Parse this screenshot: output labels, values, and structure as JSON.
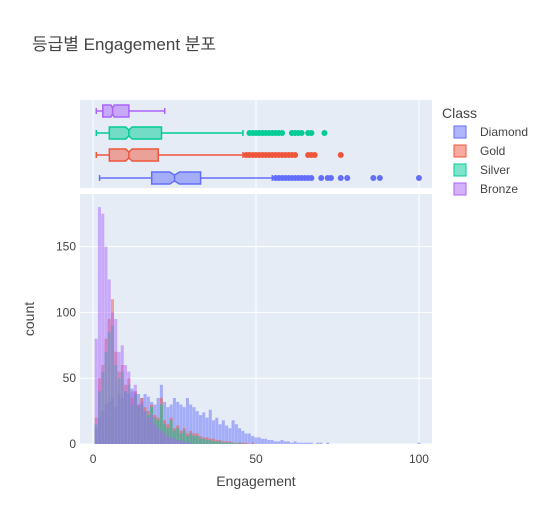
{
  "chart_data": {
    "type": "histogram_with_box_marginal",
    "title": "등급별 Engagement 분포",
    "xlabel": "Engagement",
    "ylabel": "count",
    "xlim": [
      -4,
      104
    ],
    "ylim": [
      0,
      190
    ],
    "x_ticks": [
      0,
      50,
      100
    ],
    "y_ticks": [
      0,
      50,
      100,
      150
    ],
    "legend": {
      "title": "Class",
      "position": "right"
    },
    "bin_width": 1,
    "colors": {
      "Diamond": "#636efa",
      "Gold": "#ef553b",
      "Silver": "#00cc96",
      "Bronze": "#ab63fa",
      "plot_bg": "#e5ecf6"
    },
    "series": [
      {
        "name": "Diamond",
        "bins_start": 1,
        "counts": [
          12,
          20,
          25,
          30,
          32,
          35,
          28,
          38,
          35,
          40,
          38,
          42,
          40,
          38,
          35,
          38,
          36,
          32,
          30,
          35,
          45,
          32,
          28,
          30,
          35,
          32,
          30,
          28,
          35,
          30,
          28,
          25,
          22,
          24,
          20,
          26,
          18,
          20,
          15,
          18,
          14,
          12,
          18,
          15,
          12,
          10,
          8,
          8,
          6,
          5,
          5,
          4,
          4,
          3,
          3,
          2,
          2,
          3,
          2,
          2,
          1,
          2,
          1,
          1,
          1,
          1,
          1,
          0,
          1,
          1,
          0,
          1,
          0,
          0,
          0,
          0,
          0,
          0,
          0,
          0,
          0,
          0,
          0,
          0,
          0,
          0,
          0,
          0,
          0,
          0,
          0,
          0,
          0,
          0,
          0,
          0,
          0,
          0,
          0,
          1
        ],
        "box": {
          "q1": 18,
          "median": 25,
          "q3": 33,
          "lower_fence": 2,
          "upper_fence": 55,
          "notch_low": 23.5,
          "notch_high": 26.5,
          "outliers": [
            56,
            57,
            58,
            59,
            60,
            61,
            62,
            63,
            64,
            65,
            66,
            67,
            70,
            72,
            73,
            76,
            78,
            86,
            88,
            100
          ]
        }
      },
      {
        "name": "Gold",
        "bins_start": 1,
        "counts": [
          20,
          50,
          60,
          80,
          95,
          110,
          70,
          55,
          60,
          45,
          50,
          35,
          40,
          30,
          35,
          28,
          25,
          30,
          22,
          20,
          35,
          18,
          15,
          20,
          12,
          14,
          10,
          12,
          8,
          10,
          8,
          8,
          6,
          5,
          5,
          4,
          4,
          3,
          3,
          2,
          2,
          2,
          1,
          1,
          1,
          1,
          1,
          0,
          1,
          0,
          0,
          0,
          0,
          0,
          0,
          0,
          0,
          0,
          0,
          0,
          0,
          0,
          0,
          0,
          0,
          0,
          0,
          0,
          0,
          0,
          0,
          0,
          0,
          0,
          0,
          0,
          0,
          0,
          0,
          0,
          0,
          0,
          0,
          0,
          0,
          0,
          0,
          0,
          0,
          0,
          0,
          0,
          0,
          0,
          0,
          0,
          0,
          0,
          0,
          0
        ],
        "box": {
          "q1": 5,
          "median": 11,
          "q3": 20,
          "lower_fence": 1,
          "upper_fence": 46,
          "notch_low": 10,
          "notch_high": 12,
          "outliers": [
            47,
            48,
            49,
            50,
            51,
            52,
            53,
            54,
            55,
            56,
            57,
            58,
            59,
            60,
            61,
            62,
            66,
            67,
            68,
            76
          ]
        }
      },
      {
        "name": "Silver",
        "bins_start": 1,
        "counts": [
          15,
          40,
          55,
          70,
          85,
          90,
          60,
          50,
          55,
          40,
          45,
          30,
          38,
          28,
          30,
          25,
          22,
          28,
          20,
          18,
          30,
          15,
          12,
          18,
          10,
          12,
          8,
          10,
          6,
          8,
          6,
          6,
          4,
          4,
          3,
          3,
          2,
          2,
          2,
          1,
          1,
          1,
          1,
          0,
          1,
          0,
          0,
          0,
          0,
          0,
          0,
          0,
          0,
          0,
          0,
          0,
          0,
          0,
          0,
          0,
          0,
          0,
          0,
          0,
          0,
          0,
          0,
          0,
          0,
          0,
          0,
          0,
          0,
          0,
          0,
          0,
          0,
          0,
          0,
          0,
          0,
          0,
          0,
          0,
          0,
          0,
          0,
          0,
          0,
          0,
          0,
          0,
          0,
          0,
          0,
          0,
          0,
          0,
          0,
          0
        ],
        "box": {
          "q1": 5,
          "median": 11,
          "q3": 21,
          "lower_fence": 1,
          "upper_fence": 46,
          "notch_low": 10,
          "notch_high": 12,
          "outliers": [
            48,
            49,
            50,
            51,
            52,
            53,
            54,
            55,
            56,
            57,
            58,
            61,
            62,
            63,
            64,
            66,
            67,
            71
          ]
        }
      },
      {
        "name": "Bronze",
        "bins_start": 1,
        "counts": [
          80,
          180,
          175,
          150,
          125,
          100,
          95,
          70,
          75,
          60,
          55,
          40,
          45,
          30,
          32,
          25,
          20,
          22,
          15,
          12,
          10,
          8,
          6,
          5,
          4,
          3,
          2,
          2,
          1,
          1,
          0,
          0,
          0,
          0,
          0,
          0,
          0,
          0,
          0,
          0,
          0,
          0,
          0,
          0,
          0,
          0,
          0,
          0,
          0,
          0,
          0,
          0,
          0,
          0,
          0,
          0,
          0,
          0,
          0,
          0,
          0,
          0,
          0,
          0,
          0,
          0,
          0,
          0,
          0,
          0,
          0,
          0,
          0,
          0,
          0,
          0,
          0,
          0,
          0,
          0,
          0,
          0,
          0,
          0,
          0,
          0,
          0,
          0,
          0,
          0,
          0,
          0,
          0,
          0,
          0,
          0,
          0,
          0,
          0,
          0
        ],
        "box": {
          "q1": 3,
          "median": 6,
          "q3": 11,
          "lower_fence": 1,
          "upper_fence": 22,
          "notch_low": 5.5,
          "notch_high": 6.5,
          "outliers": []
        }
      }
    ]
  }
}
